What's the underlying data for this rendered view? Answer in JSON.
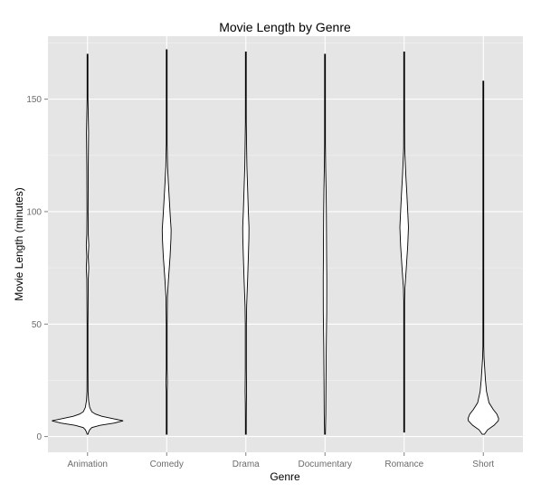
{
  "chart_data": {
    "type": "violin",
    "title": "Movie Length by Genre",
    "xlabel": "Genre",
    "ylabel": "Movie Length (minutes)",
    "categories": [
      "Animation",
      "Comedy",
      "Drama",
      "Documentary",
      "Romance",
      "Short"
    ],
    "y_ticks": [
      0,
      50,
      100,
      150
    ],
    "ylim": [
      -7,
      178
    ],
    "grid": true,
    "legend": "none",
    "colors": {
      "panel_background": "#e5e5e5",
      "grid_major": "#ffffff",
      "grid_minor": "#f2f2f2",
      "violin_fill": "#ffffff",
      "violin_outline": "#000000"
    },
    "series": [
      {
        "category": "Animation",
        "density_half_width": [
          [
            1,
            0.01
          ],
          [
            2,
            0.03
          ],
          [
            3,
            0.06
          ],
          [
            4,
            0.12
          ],
          [
            5,
            0.35
          ],
          [
            6,
            0.75
          ],
          [
            7,
            1.0
          ],
          [
            8,
            0.7
          ],
          [
            9,
            0.4
          ],
          [
            10,
            0.22
          ],
          [
            11,
            0.12
          ],
          [
            13,
            0.06
          ],
          [
            16,
            0.03
          ],
          [
            20,
            0.015
          ],
          [
            30,
            0.012
          ],
          [
            50,
            0.012
          ],
          [
            70,
            0.02
          ],
          [
            75,
            0.035
          ],
          [
            80,
            0.02
          ],
          [
            85,
            0.035
          ],
          [
            90,
            0.02
          ],
          [
            100,
            0.015
          ],
          [
            120,
            0.02
          ],
          [
            135,
            0.03
          ],
          [
            150,
            0.01
          ],
          [
            170,
            0.005
          ]
        ]
      },
      {
        "category": "Comedy",
        "density_half_width": [
          [
            1,
            0.004
          ],
          [
            5,
            0.012
          ],
          [
            10,
            0.012
          ],
          [
            20,
            0.012
          ],
          [
            24,
            0.02
          ],
          [
            30,
            0.01
          ],
          [
            50,
            0.012
          ],
          [
            62,
            0.02
          ],
          [
            70,
            0.05
          ],
          [
            80,
            0.095
          ],
          [
            88,
            0.12
          ],
          [
            92,
            0.125
          ],
          [
            98,
            0.1
          ],
          [
            105,
            0.075
          ],
          [
            112,
            0.05
          ],
          [
            120,
            0.025
          ],
          [
            130,
            0.01
          ],
          [
            150,
            0.006
          ],
          [
            172,
            0.003
          ]
        ]
      },
      {
        "category": "Drama",
        "density_half_width": [
          [
            1,
            0.004
          ],
          [
            8,
            0.012
          ],
          [
            15,
            0.015
          ],
          [
            20,
            0.02
          ],
          [
            30,
            0.015
          ],
          [
            50,
            0.015
          ],
          [
            58,
            0.022
          ],
          [
            70,
            0.05
          ],
          [
            80,
            0.07
          ],
          [
            88,
            0.085
          ],
          [
            93,
            0.088
          ],
          [
            100,
            0.07
          ],
          [
            110,
            0.05
          ],
          [
            120,
            0.03
          ],
          [
            130,
            0.02
          ],
          [
            140,
            0.012
          ],
          [
            155,
            0.006
          ],
          [
            171,
            0.003
          ]
        ]
      },
      {
        "category": "Documentary",
        "density_half_width": [
          [
            1,
            0.003
          ],
          [
            10,
            0.022
          ],
          [
            25,
            0.028
          ],
          [
            40,
            0.035
          ],
          [
            55,
            0.048
          ],
          [
            70,
            0.05
          ],
          [
            80,
            0.045
          ],
          [
            90,
            0.042
          ],
          [
            100,
            0.038
          ],
          [
            110,
            0.03
          ],
          [
            120,
            0.018
          ],
          [
            130,
            0.008
          ],
          [
            150,
            0.004
          ],
          [
            170,
            0.002
          ]
        ]
      },
      {
        "category": "Romance",
        "density_half_width": [
          [
            2,
            0.003
          ],
          [
            20,
            0.005
          ],
          [
            40,
            0.006
          ],
          [
            60,
            0.008
          ],
          [
            66,
            0.02
          ],
          [
            75,
            0.06
          ],
          [
            85,
            0.1
          ],
          [
            93,
            0.12
          ],
          [
            100,
            0.1
          ],
          [
            108,
            0.075
          ],
          [
            115,
            0.05
          ],
          [
            122,
            0.03
          ],
          [
            128,
            0.015
          ],
          [
            140,
            0.005
          ],
          [
            171,
            0.002
          ]
        ]
      },
      {
        "category": "Short",
        "density_half_width": [
          [
            1,
            0.03
          ],
          [
            3,
            0.12
          ],
          [
            5,
            0.3
          ],
          [
            7,
            0.42
          ],
          [
            8,
            0.43
          ],
          [
            10,
            0.38
          ],
          [
            12,
            0.28
          ],
          [
            15,
            0.16
          ],
          [
            20,
            0.09
          ],
          [
            25,
            0.06
          ],
          [
            30,
            0.04
          ],
          [
            35,
            0.02
          ],
          [
            40,
            0.012
          ],
          [
            48,
            0.006
          ],
          [
            60,
            0.004
          ],
          [
            100,
            0.002
          ],
          [
            130,
            0.002
          ],
          [
            158,
            0.001
          ]
        ]
      }
    ]
  }
}
